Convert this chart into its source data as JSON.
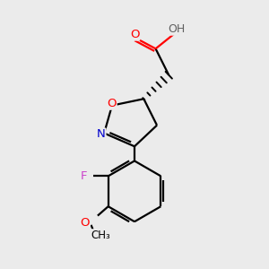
{
  "background_color": "#ebebeb",
  "atom_colors": {
    "C": "#000000",
    "O": "#ff0000",
    "N": "#0000cd",
    "F": "#cc44cc",
    "H": "#606060"
  },
  "bond_color": "#000000",
  "bond_width": 1.6,
  "figsize": [
    3.0,
    3.0
  ],
  "dpi": 100,
  "xlim": [
    0,
    10
  ],
  "ylim": [
    0,
    10
  ]
}
